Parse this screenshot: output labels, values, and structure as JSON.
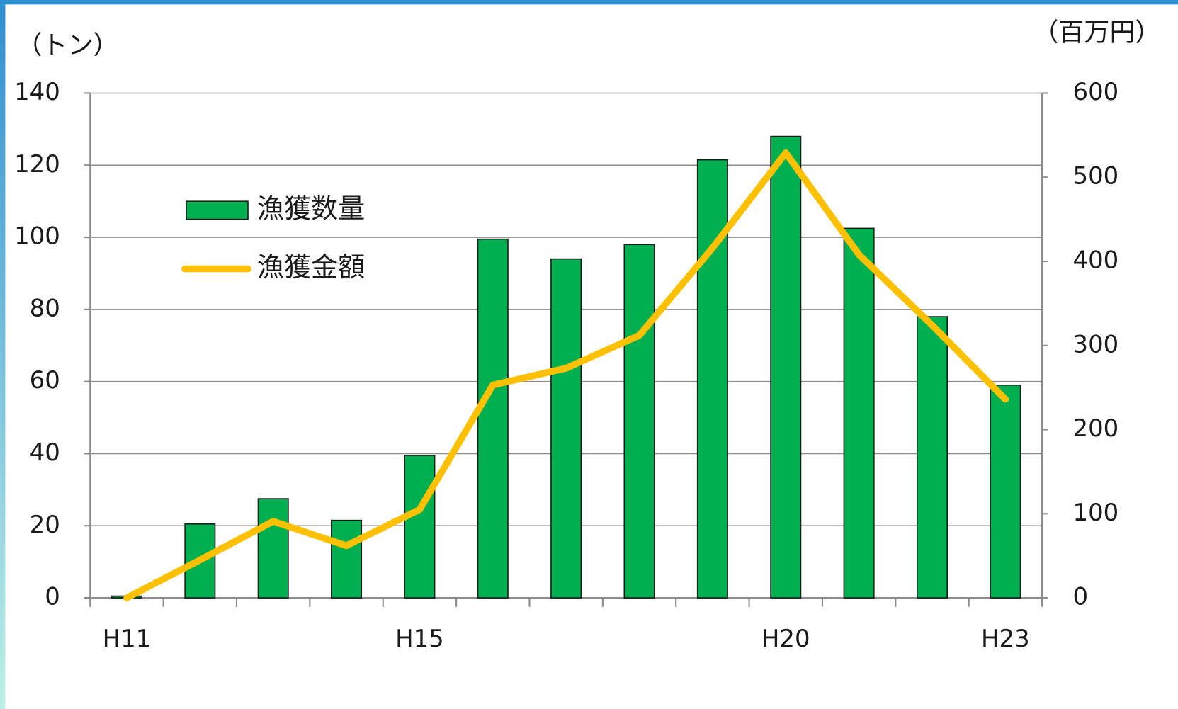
{
  "chart_data": {
    "type": "bar_line",
    "y_label": "（トン）",
    "y2_label": "（百万円）",
    "categories": [
      "H11",
      null,
      null,
      null,
      "H15",
      null,
      null,
      null,
      null,
      "H20",
      null,
      null,
      "H23"
    ],
    "series": [
      {
        "name": "漁獲数量",
        "type": "bar",
        "color": "#00b050",
        "values": [
          0.5,
          20.5,
          27.5,
          21.5,
          39.5,
          99.5,
          94,
          98,
          121.5,
          128,
          102.5,
          78,
          59
        ]
      },
      {
        "name": "漁獲金額",
        "type": "line",
        "axis": "y2",
        "color": "#ffc000",
        "values": [
          0,
          45,
          91,
          62,
          105,
          253,
          273,
          312,
          416,
          529,
          408,
          324,
          236
        ]
      }
    ],
    "ylim": [
      0,
      140
    ],
    "yticks": [
      0,
      20,
      40,
      60,
      80,
      100,
      120,
      140
    ],
    "y2lim": [
      0,
      600
    ],
    "y2ticks": [
      0,
      100,
      200,
      300,
      400,
      500,
      600
    ],
    "grid": true,
    "legend": "upper left"
  }
}
